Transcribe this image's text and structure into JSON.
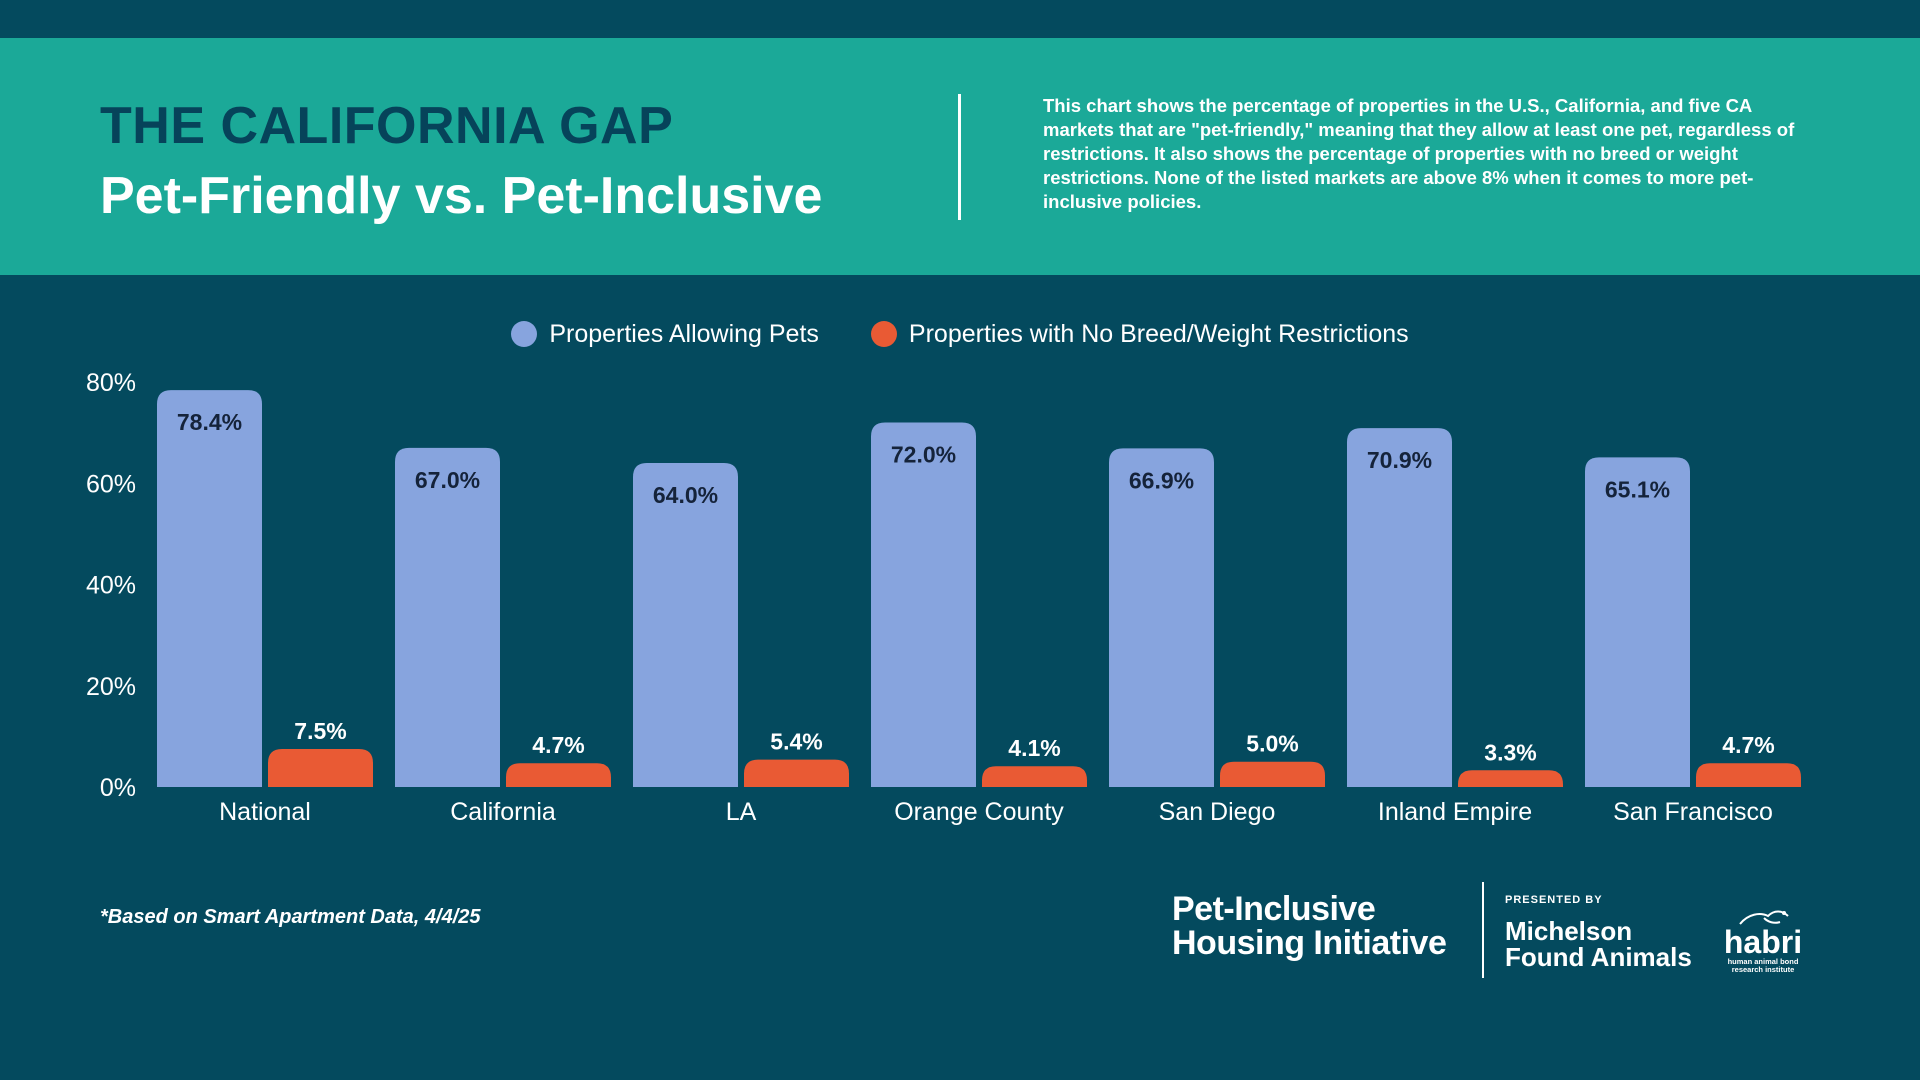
{
  "header": {
    "title_line1": "THE CALIFORNIA GAP",
    "title_line2": "Pet-Friendly vs. Pet-Inclusive",
    "description": "This chart shows the percentage of properties in the U.S., California, and five CA markets that are \"pet-friendly,\" meaning that they allow at least one pet, regardless of restrictions. It also shows the percentage of properties with no breed or weight restrictions. None of the listed markets are above 8% when it comes to more pet-inclusive policies."
  },
  "colors": {
    "background": "#044a5e",
    "header_band": "#1ba998",
    "title_dark": "#06435a",
    "series_allowing": "#87a4de",
    "series_no_restrictions": "#e95a34",
    "label_dark": "#15233a"
  },
  "chart_data": {
    "type": "bar",
    "categories": [
      "National",
      "California",
      "LA",
      "Orange County",
      "San Diego",
      "Inland Empire",
      "San Francisco"
    ],
    "series": [
      {
        "name": "Properties Allowing Pets",
        "values": [
          78.4,
          67.0,
          64.0,
          72.0,
          66.9,
          70.9,
          65.1
        ],
        "labels": [
          "78.4%",
          "67.0%",
          "64.0%",
          "72.0%",
          "66.9%",
          "70.9%",
          "65.1%"
        ]
      },
      {
        "name": "Properties with No Breed/Weight Restrictions",
        "values": [
          7.5,
          4.7,
          5.4,
          4.1,
          5.0,
          3.3,
          4.7
        ],
        "labels": [
          "7.5%",
          "4.7%",
          "5.4%",
          "4.1%",
          "5.0%",
          "3.3%",
          "4.7%"
        ]
      }
    ],
    "ylim": [
      0,
      80
    ],
    "yticks": [
      0,
      20,
      40,
      60,
      80
    ],
    "ytick_labels": [
      "0%",
      "20%",
      "40%",
      "60%",
      "80%"
    ],
    "grid": false,
    "legend_position": "top-center"
  },
  "footnote": "*Based on Smart Apartment Data, 4/4/25",
  "logos": {
    "phii_line1": "Pet-Inclusive",
    "phii_line2": "Housing Initiative",
    "presented_by": "PRESENTED BY",
    "michelson_line1": "Michelson",
    "michelson_line2": "Found Animals",
    "habri_word": "habri",
    "habri_tag_line1": "human animal bond",
    "habri_tag_line2": "research institute"
  }
}
